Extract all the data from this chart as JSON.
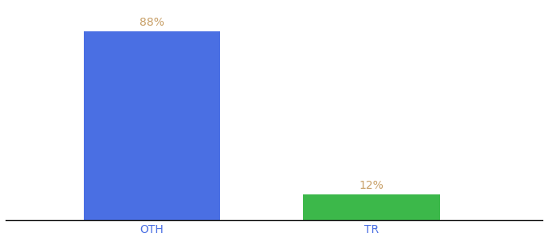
{
  "categories": [
    "OTH",
    "TR"
  ],
  "values": [
    88,
    12
  ],
  "bar_colors": [
    "#4a6fe3",
    "#3cb84a"
  ],
  "label_texts": [
    "88%",
    "12%"
  ],
  "label_color": "#c8a068",
  "tick_color": "#4a6fe3",
  "ylim": [
    0,
    100
  ],
  "background_color": "#ffffff",
  "label_fontsize": 10,
  "tick_fontsize": 10,
  "bar_width": 0.28,
  "x_positions": [
    0.3,
    0.75
  ]
}
